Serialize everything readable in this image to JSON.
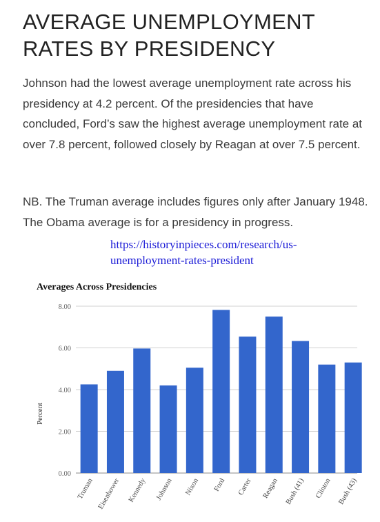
{
  "article": {
    "title_line1": "AVERAGE UNEMPLOYMENT",
    "title_line2": "RATES BY PRESIDENCY",
    "paragraph1": "Johnson had the lowest average unemployment rate across his presidency at 4.2 percent. Of the presidencies that have concluded, Ford’s saw the highest average unemployment rate at over 7.8 percent, followed closely by Reagan at over 7.5 percent.",
    "paragraph2": "NB. The Truman average includes figures only after January 1948. The Obama average is for a presidency in progress.",
    "link_line1": "https://historyinpieces.com/research/us-",
    "link_line2": "unemployment-rates-president"
  },
  "colors": {
    "bar": "#3366cc",
    "grid": "#d0d0d0",
    "link": "#1a1ad6"
  },
  "chart_data": {
    "type": "bar",
    "title": "Averages Across Presidencies",
    "ylabel": "Percent",
    "xlabel": "",
    "ylim": [
      0,
      8
    ],
    "yticks": [
      "0.00",
      "2.00",
      "4.00",
      "6.00",
      "8.00"
    ],
    "ytick_values": [
      0,
      2,
      4,
      6,
      8
    ],
    "grid": true,
    "categories": [
      "Truman",
      "Eisenhower",
      "Kennedy",
      "Johnson",
      "Nixon",
      "Ford",
      "Carter",
      "Reagan",
      "Bush (41)",
      "Clinton",
      "Bush (43)"
    ],
    "values": [
      4.25,
      4.9,
      5.97,
      4.2,
      5.05,
      7.82,
      6.54,
      7.5,
      6.33,
      5.2,
      5.3
    ]
  }
}
